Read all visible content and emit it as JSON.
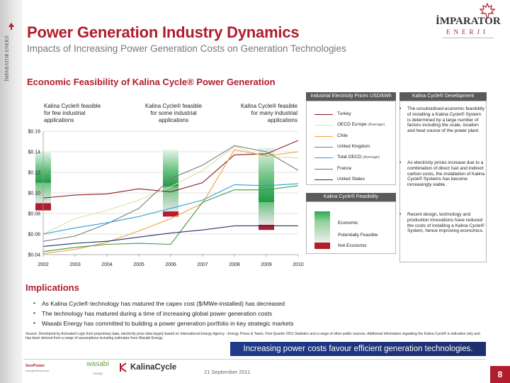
{
  "header": {
    "title": "Power Generation Industry Dynamics",
    "subtitle": "Impacts of Increasing Power Generation Costs on Generation Technologies"
  },
  "logo": {
    "name": "İMPARATOR",
    "sub": "ENERJI",
    "side_text": "İMPARATOR ENERJI"
  },
  "section_title": "Economic Feasibility of Kalina Cycle® Power Generation",
  "zones": [
    {
      "label": "Kalina Cycle® feasible for few industrial applications",
      "line1": "Kalina Cycle® feasible",
      "line2": "for few industrial",
      "line3": "applications"
    },
    {
      "label": "Kalina Cycle® feasible for some industrial applications",
      "line1": "Kalina Cycle® feasible",
      "line2": "for some industrial",
      "line3": "applications"
    },
    {
      "label": "Kalina Cycle® feasible for many industrial applications",
      "line1": "Kalina Cycle® feasible",
      "line2": "for many industrial",
      "line3": "applications"
    }
  ],
  "chart_data": {
    "type": "line",
    "title": "Industrial Electricity Prices USD/kWh",
    "x": [
      2002,
      2003,
      2004,
      2005,
      2006,
      2007,
      2008,
      2009,
      2010
    ],
    "x_tick_labels": [
      "2002",
      "2003",
      "2004",
      "2005",
      "2006",
      "2007",
      "2008",
      "2009",
      "2010"
    ],
    "ylim": [
      0.04,
      0.16
    ],
    "y_ticks": [
      0.04,
      0.06,
      0.08,
      0.1,
      0.12,
      0.14,
      0.16
    ],
    "y_tick_labels": [
      "$0.04",
      "$0.06",
      "$0.08",
      "$0.10",
      "$0.12",
      "$0.14",
      "$0.16"
    ],
    "grid": true,
    "series": [
      {
        "name": "Turkey",
        "qualifier": "",
        "color": "#8b1a22",
        "values": [
          0.095,
          0.098,
          0.099,
          0.104,
          0.101,
          0.11,
          0.137,
          0.138,
          0.151
        ]
      },
      {
        "name": "OECD Europe",
        "qualifier": "(Average)",
        "color": "#d6e3a3",
        "values": [
          0.06,
          0.075,
          0.083,
          0.093,
          0.106,
          0.122,
          0.145,
          0.135,
          0.134
        ]
      },
      {
        "name": "Chile",
        "qualifier": "",
        "color": "#f0a03c",
        "values": [
          0.041,
          0.045,
          0.052,
          0.063,
          0.075,
          0.09,
          0.142,
          0.136,
          0.14
        ]
      },
      {
        "name": "United Kingdom",
        "qualifier": "",
        "color": "#7b7b7b",
        "values": [
          0.053,
          0.058,
          0.07,
          0.085,
          0.114,
          0.127,
          0.146,
          0.14,
          0.122
        ]
      },
      {
        "name": "Total OECD",
        "qualifier": "(Average)",
        "color": "#2a9fd8",
        "values": [
          0.06,
          0.066,
          0.071,
          0.077,
          0.085,
          0.093,
          0.108,
          0.107,
          0.109
        ]
      },
      {
        "name": "France",
        "qualifier": "",
        "color": "#3d9a3d",
        "values": [
          0.043,
          0.047,
          0.05,
          0.051,
          0.05,
          0.091,
          0.103,
          0.103,
          0.107
        ]
      },
      {
        "name": "United States",
        "qualifier": "",
        "color": "#2b2f6e",
        "values": [
          0.048,
          0.051,
          0.053,
          0.057,
          0.061,
          0.064,
          0.068,
          0.068,
          0.068
        ]
      }
    ],
    "feasibility_bars": [
      {
        "year": 2002,
        "economic_from": 0.11,
        "economic_to": 0.14,
        "potential_from": 0.09,
        "potential_to": 0.11,
        "not_economic_from": 0.083,
        "not_economic_to": 0.09
      },
      {
        "year": 2006,
        "economic_from": 0.106,
        "economic_to": 0.142,
        "potential_from": 0.082,
        "potential_to": 0.106,
        "not_economic_from": 0.077,
        "not_economic_to": 0.082
      },
      {
        "year": 2009,
        "economic_from": 0.091,
        "economic_to": 0.144,
        "potential_from": 0.069,
        "potential_to": 0.091,
        "not_economic_from": 0.064,
        "not_economic_to": 0.069
      }
    ]
  },
  "feasibility_legend": {
    "title": "Kalina Cycle® Feasibility",
    "items": [
      "Economic",
      "Potentially Feasible",
      "Not-Economic"
    ],
    "colors": {
      "economic": "#2fa84f",
      "potential": "#cfe8d0",
      "not_economic": "#b01d2c"
    }
  },
  "development": {
    "title": "Kalina Cycle® Development",
    "bullets": [
      "The unsubsidised economic feasibility of installing a Kalina Cycle® System is determined by a large number of factors including the scale, location and heat source of the power plant.",
      "As electricity prices increase due to a combination of direct fuel and indirect carbon costs, the installation of Kalina Cycle® Systems has become increasingly viable.",
      "Recent design, technology and production innovations have reduced the costs of installing a Kalina Cycle® System, hence improving economics."
    ]
  },
  "implications": {
    "title": "Implications",
    "items": [
      "As Kalina Cycle® technology has matured the capex cost ($/MWe-installed) has decreased",
      "The technology has matured during a time of increasing global power generation costs",
      "Wasabi Energy has committed to building a power generation portfolio in key strategic markets"
    ]
  },
  "source": "Source:  Developed by Activated Logic from proprietary data, electricity price data largely based on International Energy Agency - Energy Prices & Taxes, First Quarter 2011 Statistics and a range of other public sources.  Additional information regarding the Kalina Cycle® is indicative only and has been derived from a range of assumptions including estimates from Wasabi Energy.",
  "banner": "Increasing power costs favour efficient generation technologies.",
  "footer": {
    "date": "21 September 2011",
    "page": "8",
    "wasabi": "wasabi",
    "wasabi_sub": "energy",
    "kalina": "KalinaCycle",
    "geo": "GeoPower",
    "geo_sub": "www.geothermal.com"
  },
  "colors": {
    "brand_red": "#b01d2c",
    "banner_blue": "#1e3a8a"
  }
}
